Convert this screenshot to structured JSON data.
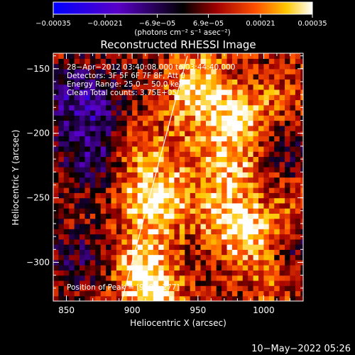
{
  "chart_data": {
    "type": "heatmap",
    "title": "Reconstructed RHESSI Image",
    "xlabel": "Heliocentric X (arcsec)",
    "ylabel": "Heliocentric Y (arcsec)",
    "xlim": [
      840,
      1030
    ],
    "ylim": [
      -330,
      -138
    ],
    "xticks": [
      850,
      900,
      950,
      1000
    ],
    "xtick_labels": [
      "850",
      "900",
      "950",
      "1000"
    ],
    "yticks": [
      -150,
      -200,
      -250,
      -300
    ],
    "ytick_labels": [
      "−150",
      "−200",
      "−250",
      "−300"
    ],
    "colorbar": {
      "range": [
        -0.00035,
        0.00035
      ],
      "ticks": [
        -0.00035,
        -0.00021,
        -6.9e-05,
        6.9e-05,
        0.00021,
        0.00035
      ],
      "tick_labels": [
        "−0.00035",
        "−0.00021",
        "−6.9e−05",
        "6.9e−05",
        "0.00021",
        "0.00035"
      ],
      "unit_label": "(photons cm⁻² s⁻¹ asec⁻²)",
      "colors": [
        "#0000ff",
        "#5a00c8",
        "#000000",
        "#a00000",
        "#ff5000",
        "#ffc800",
        "#ffffff"
      ]
    },
    "annotations": [
      "28−Apr−2012 03:40:08.000 to 03:44:40.000",
      "Detectors: 3F 5F 6F 7F 8F, Att 0",
      "Energy Range: 25.0 − 50.0 keV",
      "Clean     Total counts: 3.75E+05",
      "Position of Peak = [988,−277]"
    ],
    "peak_position": [
      988,
      -277
    ],
    "limb_curve": {
      "x": [
        892,
        902,
        912,
        922,
        932,
        942
      ],
      "y": [
        -330,
        -292,
        -254,
        -216,
        -178,
        -140
      ]
    },
    "hot_spots": [
      {
        "x": 978,
        "y": -190,
        "strength": 0.85
      },
      {
        "x": 988,
        "y": -277,
        "strength": 0.9
      },
      {
        "x": 962,
        "y": -258,
        "strength": 0.55
      },
      {
        "x": 975,
        "y": -225,
        "strength": 0.6
      },
      {
        "x": 950,
        "y": -165,
        "strength": 0.55
      },
      {
        "x": 912,
        "y": -250,
        "strength": 0.8
      },
      {
        "x": 900,
        "y": -210,
        "strength": 0.5
      },
      {
        "x": 905,
        "y": -300,
        "strength": 0.55
      },
      {
        "x": 920,
        "y": -325,
        "strength": 0.6
      },
      {
        "x": 1005,
        "y": -310,
        "strength": 0.45
      },
      {
        "x": 1020,
        "y": -260,
        "strength": 0.35
      },
      {
        "x": 1012,
        "y": -170,
        "strength": 0.35
      }
    ],
    "cold_regions": [
      {
        "x": 862,
        "y": -175,
        "strength": 0.9
      },
      {
        "x": 872,
        "y": -215,
        "strength": 0.7
      },
      {
        "x": 860,
        "y": -300,
        "strength": 0.45
      },
      {
        "x": 1020,
        "y": -210,
        "strength": 0.35
      },
      {
        "x": 1020,
        "y": -290,
        "strength": 0.5
      }
    ]
  },
  "timestamp": "10−May−2022 05:26"
}
